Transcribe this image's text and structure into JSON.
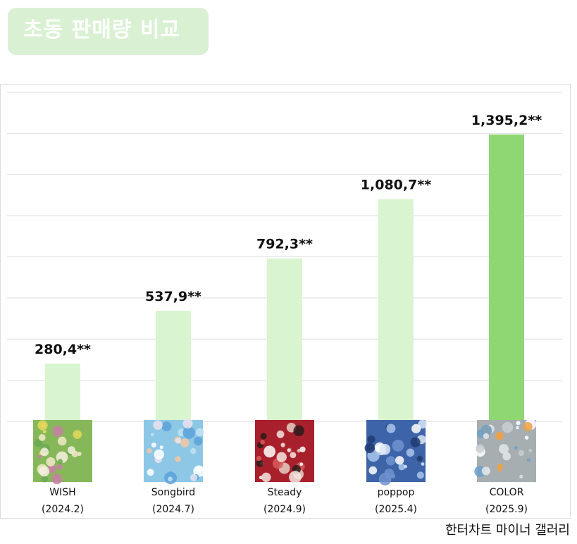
{
  "header": {
    "title": "초동 판매량 비교"
  },
  "source": "한터차트 마이너 갤러리",
  "chart_data": {
    "type": "bar",
    "title": "초동 판매량 비교",
    "categories": [
      "WISH",
      "Songbird",
      "Steady",
      "poppop",
      "COLOR"
    ],
    "dates": [
      "(2024.2)",
      "(2024.7)",
      "(2024.9)",
      "(2025.4)",
      "(2025.9)"
    ],
    "values": [
      280.4,
      537.9,
      792.3,
      1080.7,
      1395.2
    ],
    "value_labels": [
      "280,4**",
      "537,9**",
      "792,3**",
      "1,080,7**",
      "1,395,2**"
    ],
    "ylim": [
      0,
      1600
    ],
    "grid": true,
    "legend": "none",
    "colors": {
      "bar": "#d9f5cf",
      "highlight": "#8fd772",
      "grid": "#dedede"
    },
    "highlight_index": 4,
    "album_covers": [
      "wish-cover",
      "songbird-cover",
      "steady-cover",
      "poppop-cover",
      "color-cover"
    ]
  }
}
